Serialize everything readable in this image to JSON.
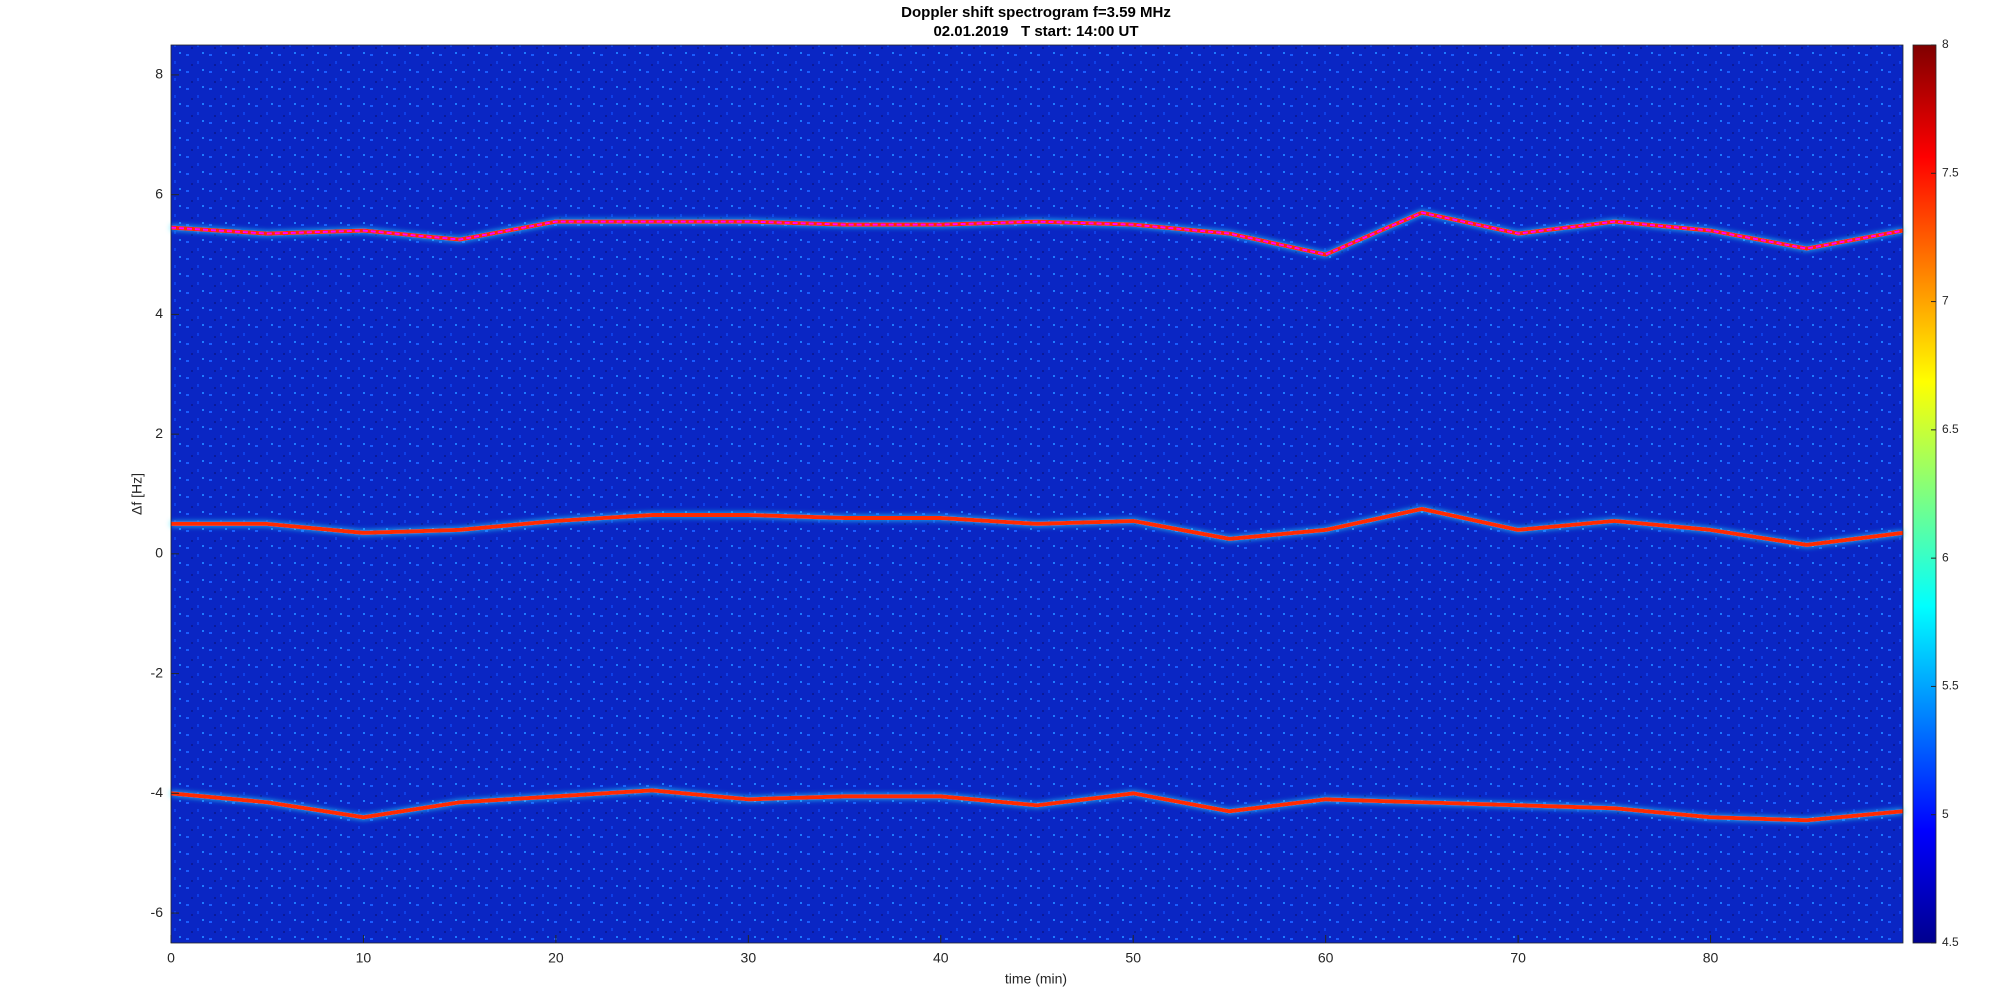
{
  "chart_data": {
    "type": "spectrogram",
    "title": "Doppler shift spectrogram f=3.59 MHz",
    "subtitle": "02.01.2019   T start: 14:00 UT",
    "xlabel": "time (min)",
    "ylabel": "Δf [Hz]",
    "x": [
      0,
      5,
      10,
      15,
      20,
      25,
      30,
      35,
      40,
      45,
      50,
      55,
      60,
      65,
      70,
      75,
      80,
      85,
      90
    ],
    "series": [
      {
        "color": "#ff2a00",
        "values": [
          5.45,
          5.35,
          5.4,
          5.25,
          5.55,
          5.55,
          5.55,
          5.5,
          5.5,
          5.55,
          5.5,
          5.35,
          5.0,
          5.7,
          5.35,
          5.55,
          5.4,
          5.1,
          5.4
        ]
      },
      {
        "color": "#ff2a00",
        "values": [
          0.5,
          0.5,
          0.35,
          0.4,
          0.55,
          0.65,
          0.65,
          0.6,
          0.6,
          0.5,
          0.55,
          0.25,
          0.4,
          0.75,
          0.4,
          0.55,
          0.4,
          0.15,
          0.35
        ]
      },
      {
        "color": "#ff2a00",
        "values": [
          -4.0,
          -4.15,
          -4.4,
          -4.15,
          -4.05,
          -3.95,
          -4.1,
          -4.05,
          -4.05,
          -4.2,
          -4.0,
          -4.3,
          -4.1,
          -4.15,
          -4.2,
          -4.25,
          -4.4,
          -4.45,
          -4.3
        ]
      },
      {
        "color": "#ff00ff",
        "dashed": true,
        "values": [
          5.45,
          5.35,
          5.4,
          5.25,
          5.55,
          5.55,
          5.55,
          5.5,
          5.5,
          5.55,
          5.5,
          5.35,
          5.0,
          5.7,
          5.35,
          5.55,
          5.4,
          5.1,
          5.4
        ]
      }
    ],
    "xlim": [
      0,
      90
    ],
    "xticks": [
      0,
      10,
      20,
      30,
      40,
      50,
      60,
      70,
      80
    ],
    "ylim": [
      -6.5,
      8.5
    ],
    "yticks": [
      -6,
      -4,
      -2,
      0,
      2,
      4,
      6,
      8
    ],
    "colormap": "jet",
    "clim": [
      4.5,
      8
    ],
    "cticks": [
      4.5,
      5,
      5.5,
      6,
      6.5,
      7,
      7.5,
      8
    ]
  }
}
